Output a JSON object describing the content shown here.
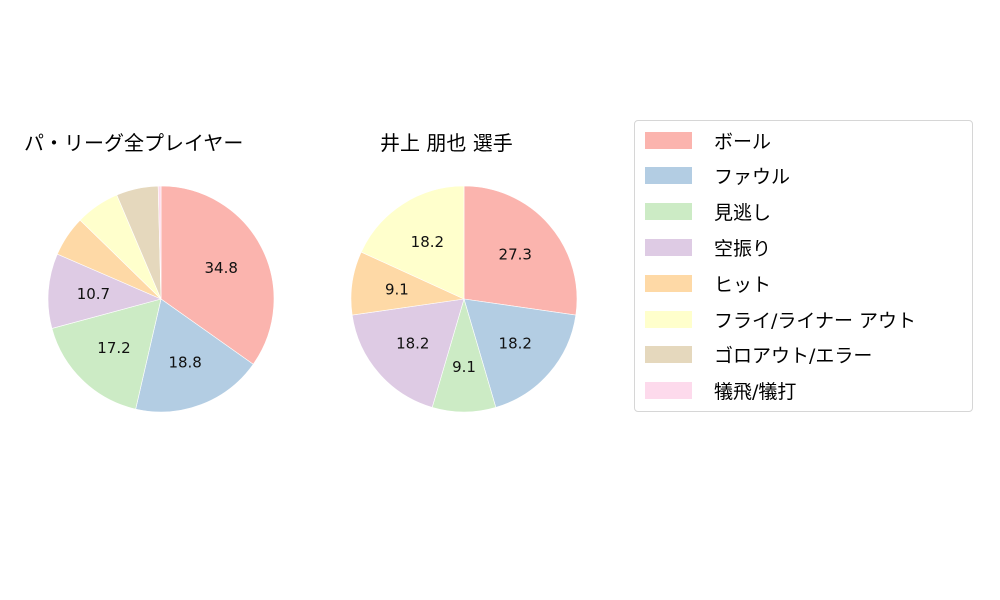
{
  "chart_data": [
    {
      "type": "pie",
      "title": "パ・リーグ全プレイヤー",
      "categories": [
        "ボール",
        "ファウル",
        "見逃し",
        "空振り",
        "ヒット",
        "フライ/ライナー アウト",
        "ゴロアウト/エラー",
        "犠飛/犠打"
      ],
      "values": [
        34.8,
        18.8,
        17.2,
        10.7,
        5.8,
        6.3,
        6.0,
        0.4
      ],
      "labels_shown": [
        "34.8",
        "18.8",
        "17.2",
        "10.7",
        "",
        "",
        "",
        ""
      ],
      "start_angle": 90,
      "direction": "clockwise"
    },
    {
      "type": "pie",
      "title": "井上 朋也  選手",
      "categories": [
        "ボール",
        "ファウル",
        "見逃し",
        "空振り",
        "ヒット",
        "フライ/ライナー アウト",
        "ゴロアウト/エラー",
        "犠飛/犠打"
      ],
      "values": [
        27.3,
        18.2,
        9.1,
        18.2,
        9.1,
        18.2,
        0,
        0
      ],
      "labels_shown": [
        "27.3",
        "18.2",
        "9.1",
        "18.2",
        "9.1",
        "18.2",
        "",
        ""
      ],
      "start_angle": 90,
      "direction": "clockwise"
    }
  ],
  "colors": [
    "#fbb4ae",
    "#b3cde3",
    "#ccebc5",
    "#decbe4",
    "#fed9a6",
    "#ffffcc",
    "#e5d8bd",
    "#fddaec"
  ],
  "titles": {
    "left": "パ・リーグ全プレイヤー",
    "right": "井上 朋也  選手"
  },
  "legend": [
    {
      "label": "ボール",
      "color": "#fbb4ae"
    },
    {
      "label": "ファウル",
      "color": "#b3cde3"
    },
    {
      "label": "見逃し",
      "color": "#ccebc5"
    },
    {
      "label": "空振り",
      "color": "#decbe4"
    },
    {
      "label": "ヒット",
      "color": "#fed9a6"
    },
    {
      "label": "フライ/ライナー アウト",
      "color": "#ffffcc"
    },
    {
      "label": "ゴロアウト/エラー",
      "color": "#e5d8bd"
    },
    {
      "label": "犠飛/犠打",
      "color": "#fddaec"
    }
  ]
}
